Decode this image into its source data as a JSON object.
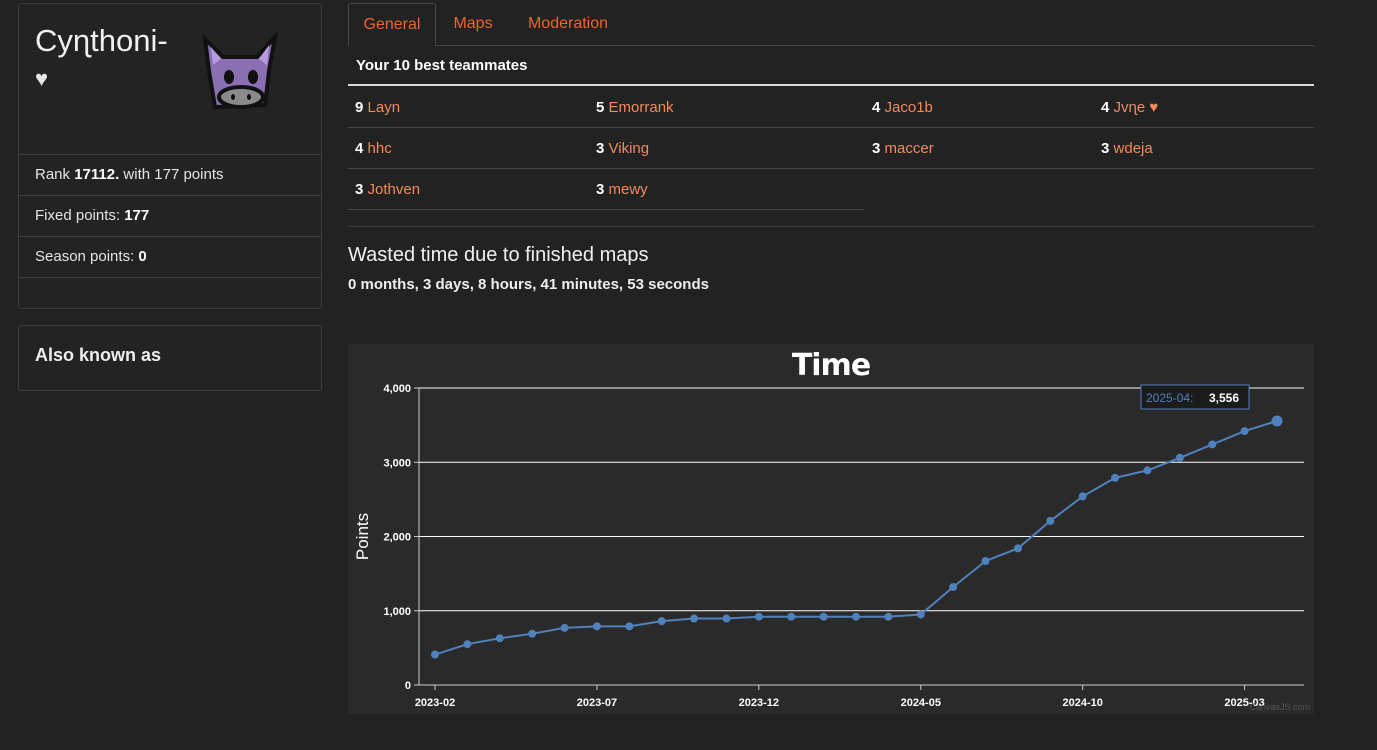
{
  "profile": {
    "name": "Cyɳthoni-",
    "heart": "♥",
    "rank_prefix": "Rank ",
    "rank": "17112.",
    "rank_suffix": " with 177 points",
    "fixed_label": "Fixed points: ",
    "fixed_value": "177",
    "season_label": "Season points: ",
    "season_value": "0"
  },
  "aka": {
    "title": "Also known as"
  },
  "tabs": [
    {
      "label": "General",
      "active": true
    },
    {
      "label": "Maps",
      "active": false
    },
    {
      "label": "Moderation",
      "active": false
    }
  ],
  "teammates": {
    "title": "Your 10 best teammates",
    "items": [
      {
        "count": "9",
        "name": "Layn"
      },
      {
        "count": "5",
        "name": "Emorrank"
      },
      {
        "count": "4",
        "name": "Jaco1b"
      },
      {
        "count": "4",
        "name": "Jvɳe ♥"
      },
      {
        "count": "4",
        "name": "hhc"
      },
      {
        "count": "3",
        "name": "Viking"
      },
      {
        "count": "3",
        "name": "maccer"
      },
      {
        "count": "3",
        "name": "wdeja"
      },
      {
        "count": "3",
        "name": "Jothven"
      },
      {
        "count": "3",
        "name": "mewy"
      }
    ]
  },
  "wasted": {
    "title": "Wasted time due to finished maps",
    "value": "0 months, 3 days, 8 hours, 41 minutes, 53 seconds"
  },
  "colors": {
    "accent": "#f28a5c",
    "tab": "#f0622e",
    "line": "#4f81bc"
  },
  "chart_data": {
    "type": "line",
    "title": "Time",
    "ylabel": "Points",
    "xlabel": "",
    "ylim": [
      0,
      4000
    ],
    "yticks": [
      "0",
      "1,000",
      "2,000",
      "3,000",
      "4,000"
    ],
    "xticks": [
      "2023-02",
      "2023-07",
      "2023-12",
      "2024-05",
      "2024-10",
      "2025-03"
    ],
    "grid": true,
    "series": [
      {
        "x": [
          "2023-02",
          "2023-03",
          "2023-04",
          "2023-05",
          "2023-06",
          "2023-07",
          "2023-08",
          "2023-09",
          "2023-10",
          "2023-11",
          "2023-12",
          "2024-01",
          "2024-02",
          "2024-03",
          "2024-04",
          "2024-05",
          "2024-06",
          "2024-07",
          "2024-08",
          "2024-09",
          "2024-10",
          "2024-11",
          "2024-12",
          "2025-01",
          "2025-02",
          "2025-03",
          "2025-04"
        ],
        "values": [
          410,
          550,
          630,
          690,
          770,
          790,
          790,
          860,
          895,
          895,
          920,
          920,
          920,
          920,
          920,
          950,
          1320,
          1670,
          1840,
          2210,
          2540,
          2790,
          2890,
          3060,
          3240,
          3420,
          3556
        ]
      }
    ],
    "tooltip": {
      "label": "2025-04:",
      "value": "3,556"
    },
    "credit": "CanvasJS.com"
  }
}
